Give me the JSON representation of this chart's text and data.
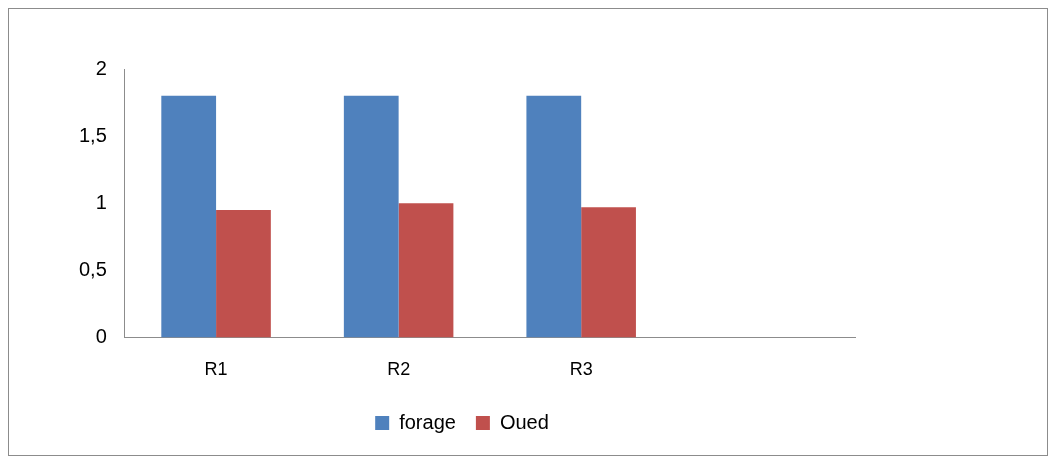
{
  "chart_data": {
    "type": "bar",
    "categories": [
      "R1",
      "R2",
      "R3",
      null
    ],
    "series": [
      {
        "name": "forage",
        "color": "#4f81bd",
        "values": [
          1.8,
          1.8,
          1.8,
          null
        ]
      },
      {
        "name": "Oued",
        "color": "#c0504d",
        "values": [
          0.95,
          1.0,
          0.97,
          null
        ]
      }
    ],
    "ylim": [
      0,
      2
    ],
    "yticks": [
      0,
      {
        "value": 0.5,
        "label": "0,5"
      },
      1,
      {
        "value": 1.5,
        "label": "1,5"
      },
      2
    ],
    "grid": false,
    "legend": "bottom"
  }
}
